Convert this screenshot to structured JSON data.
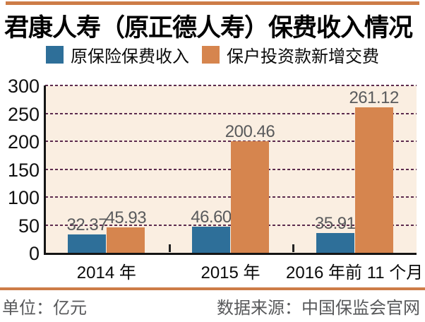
{
  "header": {
    "title": "君康人寿（原正德人寿）保费收入情况"
  },
  "footer": {
    "unit_label": "单位：亿元",
    "source_label": "数据来源：中国保监会官网"
  },
  "colors": {
    "accent_orange": "#cd7c47",
    "bar_blue": "#2e6f99",
    "bar_orange": "#d6854e",
    "plot_background": "#faeee1",
    "gridline_plum": "#5c2b4e",
    "value_label_gray": "#595a5c"
  },
  "chart_data": {
    "type": "bar",
    "title": "君康人寿（原正德人寿）保费收入情况",
    "unit": "亿元",
    "categories": [
      "2014 年",
      "2015 年",
      "2016 年前 11 个月"
    ],
    "series": [
      {
        "name": "原保险保费收入",
        "color": "#2e6f99",
        "values": [
          32.37,
          46.6,
          35.91
        ],
        "labels": [
          "32.37",
          "46.60",
          "35.91"
        ]
      },
      {
        "name": "保户投资款新增交费",
        "color": "#d6854e",
        "values": [
          45.93,
          200.46,
          261.12
        ],
        "labels": [
          "45.93",
          "200.46",
          "261.12"
        ]
      }
    ],
    "ylim": [
      0,
      300
    ],
    "yticks": [
      0,
      50,
      100,
      150,
      200,
      250,
      300
    ],
    "grid": "dashed-horizontal",
    "legend_position": "top",
    "value_labels": true,
    "source": "中国保监会官网"
  }
}
